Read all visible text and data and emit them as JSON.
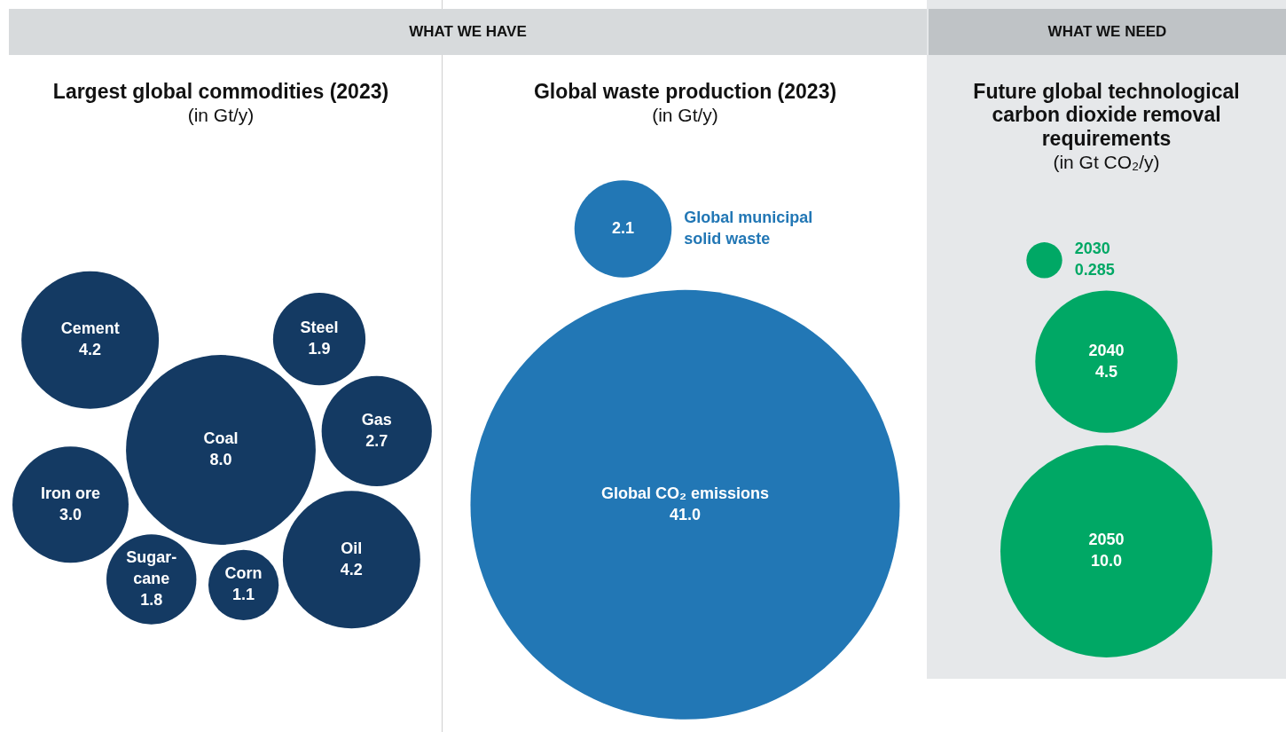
{
  "chart_data": [
    {
      "type": "other",
      "title": "Largest global commodities (2023)",
      "subtitle": "(in Gt/y)",
      "annotations": [
        "WHAT WE HAVE"
      ],
      "color": "#143a63",
      "data_labels": true,
      "categories": [
        "Coal",
        "Oil",
        "Cement",
        "Iron ore",
        "Gas",
        "Steel",
        "Sugar-cane",
        "Corn"
      ],
      "values": [
        8.0,
        4.2,
        4.2,
        3.0,
        2.7,
        1.9,
        1.8,
        1.1
      ],
      "value_labels": [
        "8.0",
        "4.2",
        "4.2",
        "3.0",
        "2.7",
        "1.9",
        "1.8",
        "1.1"
      ]
    },
    {
      "type": "other",
      "title": "Global waste production (2023)",
      "subtitle": "(in Gt/y)",
      "color": "#2277b5",
      "data_labels": true,
      "categories": [
        "Global municipal solid waste",
        "Global CO₂ emissions"
      ],
      "values": [
        2.1,
        41.0
      ],
      "value_labels": [
        "2.1",
        "41.0"
      ]
    },
    {
      "type": "other",
      "title": "Future global technological carbon dioxide removal requirements",
      "subtitle": "(in Gt CO₂/y)",
      "annotations": [
        "WHAT WE NEED"
      ],
      "color": "#00a865",
      "data_labels": true,
      "categories": [
        "2030",
        "2040",
        "2050"
      ],
      "values": [
        0.285,
        4.5,
        10.0
      ],
      "value_labels": [
        "0.285",
        "4.5",
        "10.0"
      ]
    }
  ]
}
